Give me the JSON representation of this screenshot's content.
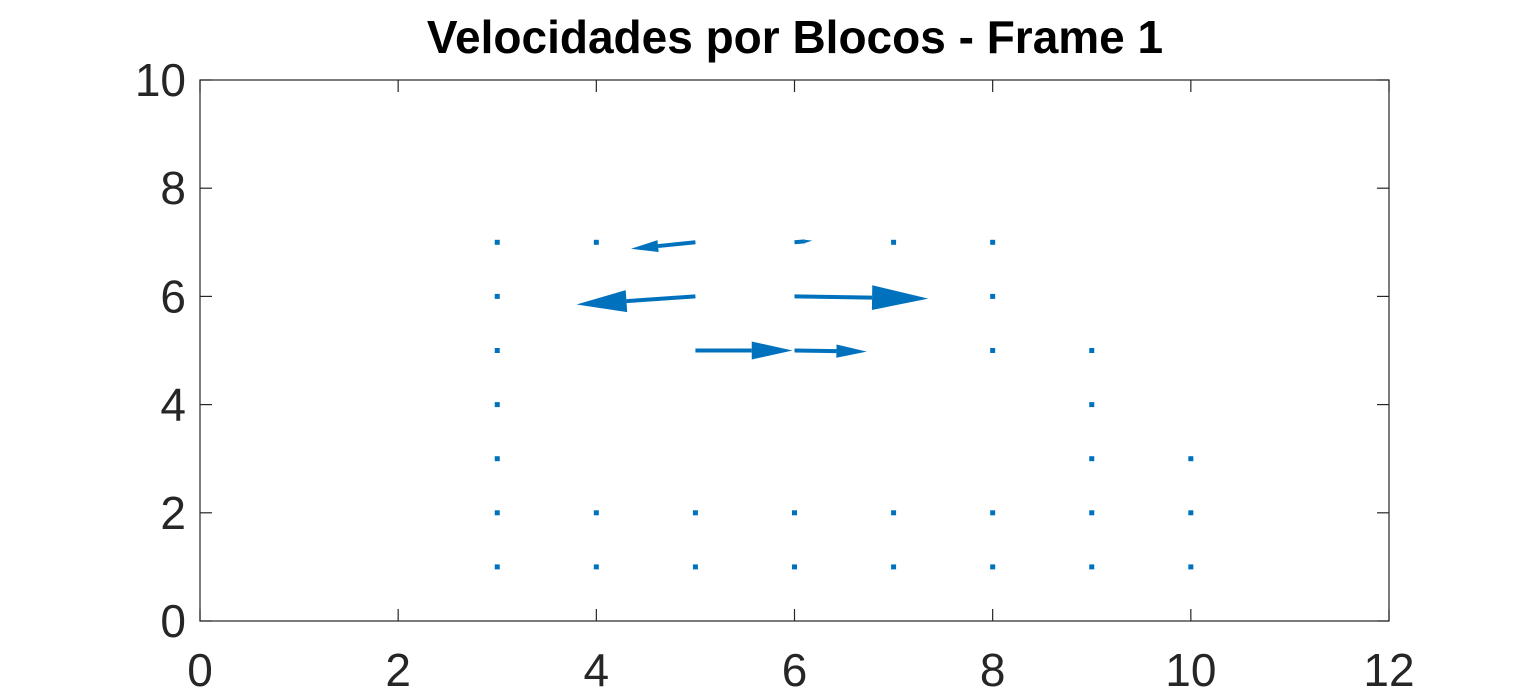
{
  "chart_data": {
    "type": "quiver",
    "title": "Velocidades por Blocos - Frame 1",
    "xlabel": "",
    "ylabel": "",
    "xlim": [
      0,
      12
    ],
    "ylim": [
      0,
      10
    ],
    "xticks": [
      "0",
      "2",
      "4",
      "6",
      "8",
      "10",
      "12"
    ],
    "yticks": [
      "0",
      "2",
      "4",
      "6",
      "8",
      "10"
    ],
    "grid": false,
    "color": "#0072BD",
    "vectors": [
      {
        "x": 3,
        "y": 7,
        "u": 0,
        "v": 0
      },
      {
        "x": 4,
        "y": 7,
        "u": 0,
        "v": 0
      },
      {
        "x": 5,
        "y": 7,
        "u": -0.65,
        "v": -0.12
      },
      {
        "x": 6,
        "y": 7,
        "u": 0.18,
        "v": 0.03
      },
      {
        "x": 7,
        "y": 7,
        "u": 0,
        "v": 0
      },
      {
        "x": 8,
        "y": 7,
        "u": 0,
        "v": 0
      },
      {
        "x": 3,
        "y": 6,
        "u": 0,
        "v": 0
      },
      {
        "x": 5,
        "y": 6,
        "u": -1.2,
        "v": -0.15
      },
      {
        "x": 6,
        "y": 6,
        "u": 1.35,
        "v": -0.04
      },
      {
        "x": 8,
        "y": 6,
        "u": 0,
        "v": 0
      },
      {
        "x": 3,
        "y": 5,
        "u": 0,
        "v": 0
      },
      {
        "x": 5,
        "y": 5,
        "u": 0.98,
        "v": 0
      },
      {
        "x": 6,
        "y": 5,
        "u": 0.73,
        "v": -0.02
      },
      {
        "x": 8,
        "y": 5,
        "u": 0,
        "v": 0
      },
      {
        "x": 9,
        "y": 5,
        "u": 0,
        "v": 0
      },
      {
        "x": 3,
        "y": 4,
        "u": 0,
        "v": 0
      },
      {
        "x": 9,
        "y": 4,
        "u": 0,
        "v": 0
      },
      {
        "x": 3,
        "y": 3,
        "u": 0,
        "v": 0
      },
      {
        "x": 9,
        "y": 3,
        "u": 0,
        "v": 0
      },
      {
        "x": 10,
        "y": 3,
        "u": 0,
        "v": 0
      },
      {
        "x": 3,
        "y": 2,
        "u": 0,
        "v": 0
      },
      {
        "x": 4,
        "y": 2,
        "u": 0,
        "v": 0
      },
      {
        "x": 5,
        "y": 2,
        "u": 0,
        "v": 0
      },
      {
        "x": 6,
        "y": 2,
        "u": 0,
        "v": 0
      },
      {
        "x": 7,
        "y": 2,
        "u": 0,
        "v": 0
      },
      {
        "x": 8,
        "y": 2,
        "u": 0,
        "v": 0
      },
      {
        "x": 9,
        "y": 2,
        "u": 0,
        "v": 0
      },
      {
        "x": 10,
        "y": 2,
        "u": 0,
        "v": 0
      },
      {
        "x": 3,
        "y": 1,
        "u": 0,
        "v": 0
      },
      {
        "x": 4,
        "y": 1,
        "u": 0,
        "v": 0
      },
      {
        "x": 5,
        "y": 1,
        "u": 0,
        "v": 0
      },
      {
        "x": 6,
        "y": 1,
        "u": 0,
        "v": 0
      },
      {
        "x": 7,
        "y": 1,
        "u": 0,
        "v": 0
      },
      {
        "x": 8,
        "y": 1,
        "u": 0,
        "v": 0
      },
      {
        "x": 9,
        "y": 1,
        "u": 0,
        "v": 0
      },
      {
        "x": 10,
        "y": 1,
        "u": 0,
        "v": 0
      }
    ]
  }
}
